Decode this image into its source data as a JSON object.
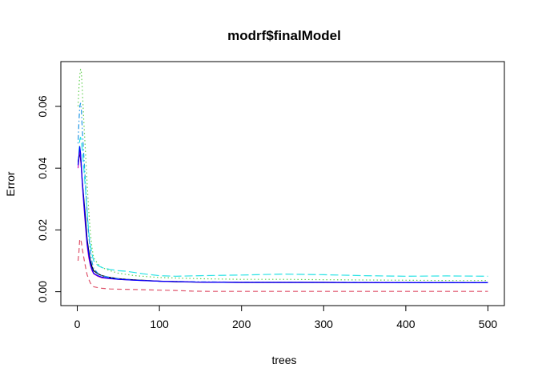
{
  "chart_data": {
    "type": "line",
    "title": "modrf$finalModel",
    "xlabel": "trees",
    "ylabel": "Error",
    "xlim": [
      -20,
      520
    ],
    "ylim": [
      -0.0045,
      0.0745
    ],
    "x_ticks": [
      0,
      100,
      200,
      300,
      400,
      500
    ],
    "x_tick_labels": [
      "0",
      "100",
      "200",
      "300",
      "400",
      "500"
    ],
    "y_ticks": [
      0.0,
      0.02,
      0.04,
      0.06
    ],
    "y_tick_labels": [
      "0.00",
      "0.02",
      "0.04",
      "0.06"
    ],
    "grid": false,
    "legend": "none",
    "series": [
      {
        "color": "#000000",
        "dash": "solid",
        "points": [
          [
            1,
            0.042
          ],
          [
            2,
            0.044
          ],
          [
            3,
            0.045
          ],
          [
            4,
            0.043
          ],
          [
            5,
            0.04
          ],
          [
            6,
            0.036
          ],
          [
            8,
            0.03
          ],
          [
            10,
            0.024
          ],
          [
            12,
            0.017
          ],
          [
            14,
            0.013
          ],
          [
            16,
            0.01
          ],
          [
            18,
            0.008
          ],
          [
            20,
            0.0068
          ],
          [
            25,
            0.0058
          ],
          [
            30,
            0.0052
          ],
          [
            40,
            0.0046
          ],
          [
            50,
            0.0042
          ],
          [
            60,
            0.004
          ],
          [
            80,
            0.0037
          ],
          [
            100,
            0.0034
          ],
          [
            120,
            0.0032
          ],
          [
            150,
            0.0031
          ],
          [
            200,
            0.003
          ],
          [
            250,
            0.003
          ],
          [
            300,
            0.003
          ],
          [
            350,
            0.0029
          ],
          [
            400,
            0.0029
          ],
          [
            450,
            0.0029
          ],
          [
            500,
            0.0029
          ]
        ]
      },
      {
        "color": "#df536b",
        "dash": "dashed",
        "points": [
          [
            1,
            0.01
          ],
          [
            2,
            0.013
          ],
          [
            3,
            0.017
          ],
          [
            4,
            0.017
          ],
          [
            5,
            0.016
          ],
          [
            6,
            0.014
          ],
          [
            8,
            0.011
          ],
          [
            10,
            0.008
          ],
          [
            12,
            0.0055
          ],
          [
            14,
            0.004
          ],
          [
            16,
            0.0028
          ],
          [
            18,
            0.002
          ],
          [
            20,
            0.0016
          ],
          [
            25,
            0.0013
          ],
          [
            30,
            0.0011
          ],
          [
            40,
            0.0009
          ],
          [
            50,
            0.0008
          ],
          [
            70,
            0.0007
          ],
          [
            100,
            0.0005
          ],
          [
            120,
            0.0004
          ],
          [
            140,
            0.0002
          ],
          [
            160,
            0.0001
          ],
          [
            200,
            0.0001
          ],
          [
            300,
            0.0001
          ],
          [
            400,
            0.0001
          ],
          [
            500,
            0.0001
          ]
        ]
      },
      {
        "color": "#61d04f",
        "dash": "dotted",
        "points": [
          [
            1,
            0.06
          ],
          [
            2,
            0.066
          ],
          [
            3,
            0.07
          ],
          [
            4,
            0.072
          ],
          [
            5,
            0.071
          ],
          [
            6,
            0.066
          ],
          [
            8,
            0.055
          ],
          [
            10,
            0.045
          ],
          [
            12,
            0.035
          ],
          [
            14,
            0.026
          ],
          [
            16,
            0.019
          ],
          [
            18,
            0.014
          ],
          [
            20,
            0.011
          ],
          [
            25,
            0.009
          ],
          [
            30,
            0.0078
          ],
          [
            40,
            0.0068
          ],
          [
            50,
            0.006
          ],
          [
            70,
            0.0052
          ],
          [
            100,
            0.0046
          ],
          [
            150,
            0.0042
          ],
          [
            200,
            0.004
          ],
          [
            250,
            0.004
          ],
          [
            300,
            0.0039
          ],
          [
            350,
            0.0038
          ],
          [
            400,
            0.0037
          ],
          [
            450,
            0.0036
          ],
          [
            500,
            0.0036
          ]
        ]
      },
      {
        "color": "#2297e6",
        "dash": "dotdash",
        "points": [
          [
            1,
            0.048
          ],
          [
            2,
            0.055
          ],
          [
            3,
            0.06
          ],
          [
            4,
            0.061
          ],
          [
            5,
            0.059
          ],
          [
            6,
            0.053
          ],
          [
            8,
            0.044
          ],
          [
            10,
            0.035
          ],
          [
            12,
            0.026
          ],
          [
            14,
            0.018
          ],
          [
            16,
            0.013
          ],
          [
            18,
            0.0095
          ],
          [
            20,
            0.0075
          ],
          [
            25,
            0.006
          ],
          [
            30,
            0.0052
          ],
          [
            40,
            0.0046
          ],
          [
            50,
            0.0042
          ],
          [
            70,
            0.0038
          ],
          [
            100,
            0.0034
          ],
          [
            150,
            0.0032
          ],
          [
            200,
            0.0031
          ],
          [
            300,
            0.003
          ],
          [
            400,
            0.003
          ],
          [
            500,
            0.003
          ]
        ]
      },
      {
        "color": "#28e2e5",
        "dash": "longdash",
        "points": [
          [
            1,
            0.041
          ],
          [
            2,
            0.045
          ],
          [
            3,
            0.049
          ],
          [
            4,
            0.05
          ],
          [
            5,
            0.049
          ],
          [
            6,
            0.046
          ],
          [
            8,
            0.04
          ],
          [
            10,
            0.033
          ],
          [
            12,
            0.026
          ],
          [
            14,
            0.019
          ],
          [
            16,
            0.015
          ],
          [
            18,
            0.012
          ],
          [
            20,
            0.01
          ],
          [
            25,
            0.0085
          ],
          [
            30,
            0.0078
          ],
          [
            40,
            0.0072
          ],
          [
            50,
            0.0068
          ],
          [
            60,
            0.0066
          ],
          [
            70,
            0.0062
          ],
          [
            80,
            0.0058
          ],
          [
            100,
            0.0052
          ],
          [
            120,
            0.005
          ],
          [
            150,
            0.0052
          ],
          [
            200,
            0.0054
          ],
          [
            250,
            0.0057
          ],
          [
            300,
            0.0055
          ],
          [
            350,
            0.0052
          ],
          [
            400,
            0.005
          ],
          [
            450,
            0.0051
          ],
          [
            500,
            0.005
          ]
        ]
      },
      {
        "color": "#cd0bbc",
        "dash": "solid",
        "points": [
          [
            1,
            0.04
          ],
          [
            2,
            0.043
          ],
          [
            3,
            0.046
          ],
          [
            4,
            0.044
          ],
          [
            5,
            0.04
          ],
          [
            6,
            0.035
          ],
          [
            8,
            0.028
          ],
          [
            10,
            0.021
          ],
          [
            12,
            0.015
          ],
          [
            14,
            0.011
          ],
          [
            16,
            0.0085
          ],
          [
            18,
            0.0068
          ],
          [
            20,
            0.0058
          ],
          [
            25,
            0.005
          ],
          [
            30,
            0.0045
          ],
          [
            40,
            0.0042
          ],
          [
            50,
            0.004
          ],
          [
            70,
            0.0037
          ],
          [
            100,
            0.0034
          ],
          [
            150,
            0.0031
          ],
          [
            200,
            0.003
          ],
          [
            300,
            0.003
          ],
          [
            400,
            0.0029
          ],
          [
            500,
            0.0029
          ]
        ]
      },
      {
        "color": "#0000ff",
        "dash": "solid",
        "points": [
          [
            1,
            0.041
          ],
          [
            2,
            0.044
          ],
          [
            3,
            0.047
          ],
          [
            4,
            0.045
          ],
          [
            5,
            0.041
          ],
          [
            6,
            0.036
          ],
          [
            8,
            0.029
          ],
          [
            10,
            0.022
          ],
          [
            12,
            0.016
          ],
          [
            14,
            0.012
          ],
          [
            16,
            0.009
          ],
          [
            18,
            0.0072
          ],
          [
            20,
            0.006
          ],
          [
            25,
            0.0052
          ],
          [
            30,
            0.0047
          ],
          [
            40,
            0.0043
          ],
          [
            50,
            0.004
          ],
          [
            70,
            0.0037
          ],
          [
            100,
            0.0034
          ],
          [
            150,
            0.0031
          ],
          [
            200,
            0.003
          ],
          [
            300,
            0.003
          ],
          [
            400,
            0.0029
          ],
          [
            500,
            0.0029
          ]
        ]
      }
    ]
  }
}
